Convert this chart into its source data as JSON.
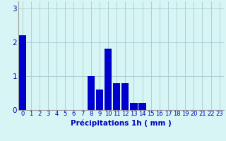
{
  "hours": [
    0,
    1,
    2,
    3,
    4,
    5,
    6,
    7,
    8,
    9,
    10,
    11,
    12,
    13,
    14,
    15,
    16,
    17,
    18,
    19,
    20,
    21,
    22,
    23
  ],
  "values": [
    2.2,
    0,
    0,
    0,
    0,
    0,
    0,
    0,
    1.0,
    0.6,
    1.8,
    0.8,
    0.8,
    0.2,
    0.2,
    0,
    0,
    0,
    0,
    0,
    0,
    0,
    0,
    0
  ],
  "bar_color": "#0000cc",
  "background_color": "#d8f5f5",
  "grid_color": "#aacccc",
  "xlabel": "Précipitations 1h ( mm )",
  "ylim": [
    0,
    3.2
  ],
  "yticks": [
    0,
    1,
    2,
    3
  ],
  "xlim": [
    -0.5,
    23.5
  ],
  "xlabel_color": "#0000bb",
  "tick_color": "#0000bb",
  "xlabel_fontsize": 7.5,
  "tick_fontsize": 6.0,
  "ytick_fontsize": 7.5
}
